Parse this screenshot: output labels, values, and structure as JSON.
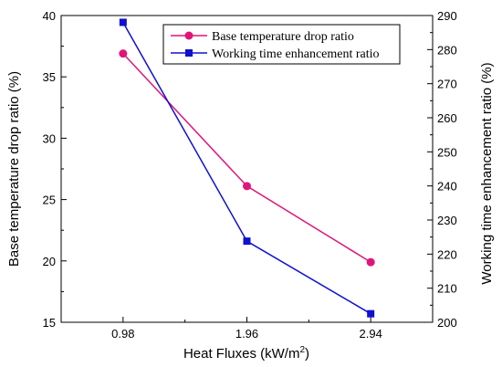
{
  "chart_data": {
    "type": "line",
    "x": [
      0.98,
      1.96,
      2.94
    ],
    "categories": [
      "0.98",
      "1.96",
      "2.94"
    ],
    "xlabel": "Heat Fluxes (kW/m",
    "xlabel_sup": "2",
    "xlabel_end": ")",
    "xlim": [
      0.49,
      3.43
    ],
    "ylabel_left": "Base temperature drop ratio (%)",
    "ylabel_right": "Working time enhancement ratio (%)",
    "ylim_left": [
      15,
      40
    ],
    "ylim_right": [
      200,
      290
    ],
    "yticks_left": [
      "15",
      "20",
      "25",
      "30",
      "35",
      "40"
    ],
    "yticks_right": [
      "200",
      "210",
      "220",
      "230",
      "240",
      "250",
      "260",
      "270",
      "280",
      "290"
    ],
    "legend_position": "top-right",
    "series": [
      {
        "name": "Base temperature drop ratio",
        "axis": "left",
        "marker": "circle",
        "color": "#e0157a",
        "values": [
          36.9,
          26.1,
          19.9
        ]
      },
      {
        "name": "Working time enhancement ratio",
        "axis": "right",
        "marker": "square",
        "color": "#1010d0",
        "values": [
          288,
          223.8,
          202.5
        ]
      }
    ]
  }
}
